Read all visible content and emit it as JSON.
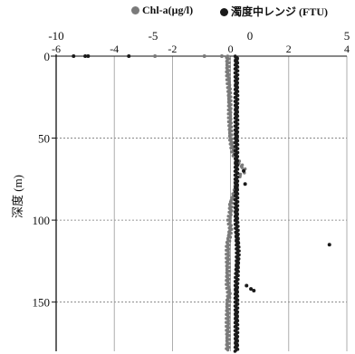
{
  "chart_data": {
    "type": "scatter",
    "ylabel": "深度 (m)",
    "y_axis": {
      "min": 0,
      "max": 180,
      "reversed": true,
      "ticks": [
        0,
        50,
        100,
        150
      ]
    },
    "x_axes": {
      "top_row_1": {
        "min": -10,
        "max": 5,
        "ticks": [
          -10,
          -5,
          0,
          5
        ]
      },
      "top_row_2": {
        "min": -6,
        "max": 4,
        "ticks": [
          -6,
          -4,
          -2,
          0,
          2,
          4
        ]
      }
    },
    "grid": true,
    "legend_position": "top-right",
    "series": [
      {
        "name": "Chl-a(μg/l)",
        "color": "#7a7a7a",
        "profile": [
          [
            0,
            -0.1
          ],
          [
            10,
            -0.1
          ],
          [
            20,
            -0.05
          ],
          [
            30,
            -0.03
          ],
          [
            40,
            -0.02
          ],
          [
            50,
            0.0
          ],
          [
            55,
            0.05
          ],
          [
            60,
            0.1
          ],
          [
            65,
            0.3
          ],
          [
            70,
            0.5
          ],
          [
            75,
            0.2
          ],
          [
            80,
            0.2
          ],
          [
            85,
            0.1
          ],
          [
            90,
            0.0
          ],
          [
            95,
            0.0
          ],
          [
            100,
            -0.05
          ],
          [
            105,
            0.0
          ],
          [
            110,
            -0.05
          ],
          [
            115,
            -0.1
          ],
          [
            120,
            -0.1
          ],
          [
            130,
            -0.1
          ],
          [
            140,
            -0.1
          ],
          [
            145,
            -0.05
          ],
          [
            150,
            -0.1
          ],
          [
            160,
            -0.1
          ],
          [
            170,
            -0.1
          ],
          [
            180,
            -0.1
          ]
        ],
        "outliers": [
          [
            -0.3,
            0
          ],
          [
            -0.9,
            0
          ],
          [
            -2.6,
            0
          ]
        ]
      },
      {
        "name": "濁度中レンジ (FTU)",
        "color": "#1a1a1a",
        "profile": [
          [
            0,
            0.2
          ],
          [
            20,
            0.2
          ],
          [
            40,
            0.2
          ],
          [
            60,
            0.2
          ],
          [
            80,
            0.2
          ],
          [
            100,
            0.2
          ],
          [
            120,
            0.25
          ],
          [
            140,
            0.2
          ],
          [
            160,
            0.2
          ],
          [
            180,
            0.2
          ]
        ],
        "outliers": [
          [
            -5.4,
            0
          ],
          [
            -5.0,
            0
          ],
          [
            -4.9,
            0
          ],
          [
            -3.5,
            0
          ],
          [
            3.4,
            115
          ],
          [
            0.55,
            140
          ],
          [
            0.7,
            142
          ],
          [
            0.8,
            143
          ],
          [
            0.45,
            70
          ],
          [
            0.5,
            78
          ]
        ]
      }
    ]
  }
}
